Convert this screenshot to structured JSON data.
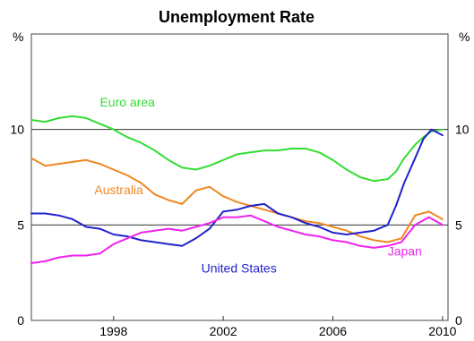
{
  "chart_data": {
    "type": "line",
    "title": "Unemployment Rate",
    "y_unit_left": "%",
    "y_unit_right": "%",
    "xlim": [
      1995.0,
      2010.2
    ],
    "ylim": [
      0,
      15
    ],
    "x_ticks": [
      {
        "value": 1998,
        "label": "1998"
      },
      {
        "value": 2002,
        "label": "2002"
      },
      {
        "value": 2006,
        "label": "2006"
      },
      {
        "value": 2010,
        "label": "2010"
      }
    ],
    "y_ticks": [
      {
        "value": 0,
        "label": "0"
      },
      {
        "value": 5,
        "label": "5"
      },
      {
        "value": 10,
        "label": "10"
      }
    ],
    "reference_lines": [
      5,
      10
    ],
    "grid": false,
    "series": [
      {
        "name": "Euro area",
        "color": "#33dd33",
        "points": [
          [
            1995.0,
            10.5
          ],
          [
            1995.5,
            10.4
          ],
          [
            1996.0,
            10.6
          ],
          [
            1996.5,
            10.7
          ],
          [
            1997.0,
            10.6
          ],
          [
            1997.5,
            10.3
          ],
          [
            1998.0,
            10.0
          ],
          [
            1998.5,
            9.6
          ],
          [
            1999.0,
            9.3
          ],
          [
            1999.5,
            8.9
          ],
          [
            2000.0,
            8.4
          ],
          [
            2000.5,
            8.0
          ],
          [
            2001.0,
            7.9
          ],
          [
            2001.5,
            8.1
          ],
          [
            2002.0,
            8.4
          ],
          [
            2002.5,
            8.7
          ],
          [
            2003.0,
            8.8
          ],
          [
            2003.5,
            8.9
          ],
          [
            2004.0,
            8.9
          ],
          [
            2004.5,
            9.0
          ],
          [
            2005.0,
            9.0
          ],
          [
            2005.5,
            8.8
          ],
          [
            2006.0,
            8.4
          ],
          [
            2006.5,
            7.9
          ],
          [
            2007.0,
            7.5
          ],
          [
            2007.5,
            7.3
          ],
          [
            2008.0,
            7.4
          ],
          [
            2008.3,
            7.8
          ],
          [
            2008.6,
            8.5
          ],
          [
            2009.0,
            9.2
          ],
          [
            2009.3,
            9.6
          ],
          [
            2009.6,
            9.9
          ],
          [
            2010.0,
            10.0
          ]
        ]
      },
      {
        "name": "Australia",
        "color": "#ee8822",
        "points": [
          [
            1995.0,
            8.5
          ],
          [
            1995.5,
            8.1
          ],
          [
            1996.0,
            8.2
          ],
          [
            1996.5,
            8.3
          ],
          [
            1997.0,
            8.4
          ],
          [
            1997.5,
            8.2
          ],
          [
            1998.0,
            7.9
          ],
          [
            1998.5,
            7.6
          ],
          [
            1999.0,
            7.2
          ],
          [
            1999.5,
            6.6
          ],
          [
            2000.0,
            6.3
          ],
          [
            2000.5,
            6.1
          ],
          [
            2001.0,
            6.8
          ],
          [
            2001.5,
            7.0
          ],
          [
            2002.0,
            6.5
          ],
          [
            2002.5,
            6.2
          ],
          [
            2003.0,
            6.0
          ],
          [
            2003.5,
            5.8
          ],
          [
            2004.0,
            5.6
          ],
          [
            2004.5,
            5.4
          ],
          [
            2005.0,
            5.2
          ],
          [
            2005.5,
            5.1
          ],
          [
            2006.0,
            4.9
          ],
          [
            2006.5,
            4.7
          ],
          [
            2007.0,
            4.4
          ],
          [
            2007.5,
            4.2
          ],
          [
            2008.0,
            4.1
          ],
          [
            2008.5,
            4.3
          ],
          [
            2009.0,
            5.5
          ],
          [
            2009.5,
            5.7
          ],
          [
            2010.0,
            5.3
          ]
        ]
      },
      {
        "name": "United States",
        "color": "#2222cc",
        "points": [
          [
            1995.0,
            5.6
          ],
          [
            1995.5,
            5.6
          ],
          [
            1996.0,
            5.5
          ],
          [
            1996.5,
            5.3
          ],
          [
            1997.0,
            4.9
          ],
          [
            1997.5,
            4.8
          ],
          [
            1998.0,
            4.5
          ],
          [
            1998.5,
            4.4
          ],
          [
            1999.0,
            4.2
          ],
          [
            1999.5,
            4.1
          ],
          [
            2000.0,
            4.0
          ],
          [
            2000.5,
            3.9
          ],
          [
            2001.0,
            4.3
          ],
          [
            2001.5,
            4.8
          ],
          [
            2002.0,
            5.7
          ],
          [
            2002.5,
            5.8
          ],
          [
            2003.0,
            6.0
          ],
          [
            2003.5,
            6.1
          ],
          [
            2004.0,
            5.6
          ],
          [
            2004.5,
            5.4
          ],
          [
            2005.0,
            5.1
          ],
          [
            2005.5,
            4.9
          ],
          [
            2006.0,
            4.6
          ],
          [
            2006.5,
            4.5
          ],
          [
            2007.0,
            4.6
          ],
          [
            2007.5,
            4.7
          ],
          [
            2008.0,
            5.0
          ],
          [
            2008.3,
            6.0
          ],
          [
            2008.6,
            7.2
          ],
          [
            2009.0,
            8.5
          ],
          [
            2009.3,
            9.5
          ],
          [
            2009.6,
            10.0
          ],
          [
            2010.0,
            9.7
          ]
        ]
      },
      {
        "name": "Japan",
        "color": "#ee22ee",
        "points": [
          [
            1995.0,
            3.0
          ],
          [
            1995.5,
            3.1
          ],
          [
            1996.0,
            3.3
          ],
          [
            1996.5,
            3.4
          ],
          [
            1997.0,
            3.4
          ],
          [
            1997.5,
            3.5
          ],
          [
            1998.0,
            4.0
          ],
          [
            1998.5,
            4.3
          ],
          [
            1999.0,
            4.6
          ],
          [
            1999.5,
            4.7
          ],
          [
            2000.0,
            4.8
          ],
          [
            2000.5,
            4.7
          ],
          [
            2001.0,
            4.9
          ],
          [
            2001.5,
            5.1
          ],
          [
            2002.0,
            5.4
          ],
          [
            2002.5,
            5.4
          ],
          [
            2003.0,
            5.5
          ],
          [
            2003.5,
            5.2
          ],
          [
            2004.0,
            4.9
          ],
          [
            2004.5,
            4.7
          ],
          [
            2005.0,
            4.5
          ],
          [
            2005.5,
            4.4
          ],
          [
            2006.0,
            4.2
          ],
          [
            2006.5,
            4.1
          ],
          [
            2007.0,
            3.9
          ],
          [
            2007.5,
            3.8
          ],
          [
            2008.0,
            3.9
          ],
          [
            2008.5,
            4.1
          ],
          [
            2009.0,
            5.0
          ],
          [
            2009.5,
            5.4
          ],
          [
            2010.0,
            5.0
          ]
        ]
      }
    ],
    "labels": [
      {
        "series": "Euro area",
        "text": "Euro area",
        "x": 1997.5,
        "y": 11.2
      },
      {
        "series": "Australia",
        "text": "Australia",
        "x": 1997.3,
        "y": 6.6
      },
      {
        "series": "United States",
        "text": "United States",
        "x": 2001.2,
        "y": 2.5
      },
      {
        "series": "Japan",
        "text": "Japan",
        "x": 2008.0,
        "y": 3.4
      }
    ]
  }
}
